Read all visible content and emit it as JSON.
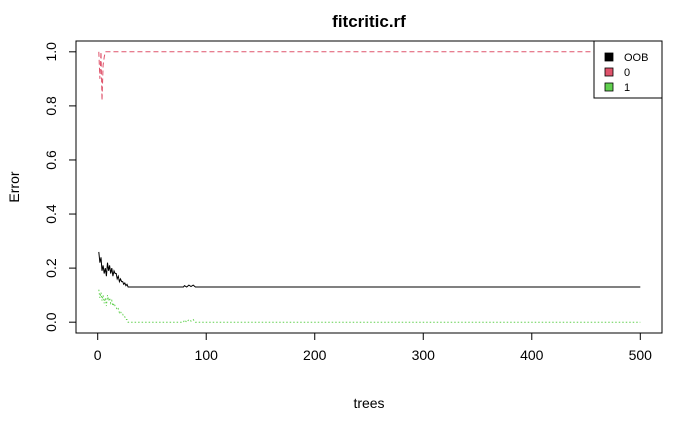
{
  "chart_data": {
    "type": "line",
    "title": "fitcritic.rf",
    "xlabel": "trees",
    "ylabel": "Error",
    "xlim": [
      0,
      500
    ],
    "ylim": [
      0,
      1
    ],
    "x_ticks": [
      0,
      100,
      200,
      300,
      400,
      500
    ],
    "x_tick_labels": [
      "0",
      "100",
      "200",
      "300",
      "400",
      "500"
    ],
    "y_ticks": [
      0,
      0.2,
      0.4,
      0.6,
      0.8,
      1
    ],
    "y_tick_labels": [
      "0.0",
      "0.2",
      "0.4",
      "0.6",
      "0.8",
      "1.0"
    ],
    "grid": false,
    "legend": "top-right",
    "series": [
      {
        "name": "OOB",
        "color": "#000000",
        "dash": "solid",
        "points": [
          [
            1,
            0.26
          ],
          [
            2,
            0.22
          ],
          [
            3,
            0.24
          ],
          [
            4,
            0.19
          ],
          [
            5,
            0.21
          ],
          [
            6,
            0.18
          ],
          [
            7,
            0.2
          ],
          [
            8,
            0.17
          ],
          [
            9,
            0.22
          ],
          [
            10,
            0.19
          ],
          [
            11,
            0.21
          ],
          [
            12,
            0.18
          ],
          [
            13,
            0.2
          ],
          [
            14,
            0.17
          ],
          [
            15,
            0.19
          ],
          [
            16,
            0.18
          ],
          [
            17,
            0.18
          ],
          [
            18,
            0.16
          ],
          [
            19,
            0.17
          ],
          [
            20,
            0.15
          ],
          [
            21,
            0.16
          ],
          [
            22,
            0.15
          ],
          [
            23,
            0.15
          ],
          [
            24,
            0.14
          ],
          [
            25,
            0.145
          ],
          [
            26,
            0.135
          ],
          [
            27,
            0.14
          ],
          [
            28,
            0.13
          ],
          [
            79,
            0.13
          ],
          [
            80,
            0.135
          ],
          [
            82,
            0.13
          ],
          [
            84,
            0.137
          ],
          [
            86,
            0.132
          ],
          [
            88,
            0.137
          ],
          [
            90,
            0.13
          ],
          [
            500,
            0.13
          ]
        ]
      },
      {
        "name": "0",
        "color": "#df536b",
        "dash": "dashed",
        "points": [
          [
            1,
            1.0
          ],
          [
            2,
            0.9
          ],
          [
            3,
            1.0
          ],
          [
            4,
            0.82
          ],
          [
            5,
            0.95
          ],
          [
            6,
            0.98
          ],
          [
            7,
            1.0
          ],
          [
            500,
            1.0
          ]
        ]
      },
      {
        "name": "1",
        "color": "#61d04f",
        "dash": "dotted",
        "points": [
          [
            1,
            0.12
          ],
          [
            2,
            0.09
          ],
          [
            3,
            0.11
          ],
          [
            4,
            0.08
          ],
          [
            5,
            0.1
          ],
          [
            6,
            0.07
          ],
          [
            7,
            0.09
          ],
          [
            8,
            0.06
          ],
          [
            9,
            0.1
          ],
          [
            10,
            0.08
          ],
          [
            11,
            0.09
          ],
          [
            12,
            0.07
          ],
          [
            13,
            0.08
          ],
          [
            14,
            0.06
          ],
          [
            15,
            0.07
          ],
          [
            16,
            0.06
          ],
          [
            17,
            0.055
          ],
          [
            18,
            0.045
          ],
          [
            19,
            0.05
          ],
          [
            20,
            0.035
          ],
          [
            21,
            0.04
          ],
          [
            22,
            0.03
          ],
          [
            23,
            0.03
          ],
          [
            24,
            0.02
          ],
          [
            25,
            0.02
          ],
          [
            26,
            0.01
          ],
          [
            27,
            0.01
          ],
          [
            28,
            0.0
          ],
          [
            79,
            0.0
          ],
          [
            80,
            0.008
          ],
          [
            82,
            0.0
          ],
          [
            84,
            0.01
          ],
          [
            86,
            0.004
          ],
          [
            88,
            0.01
          ],
          [
            90,
            0.0
          ],
          [
            500,
            0.0
          ]
        ]
      }
    ]
  }
}
